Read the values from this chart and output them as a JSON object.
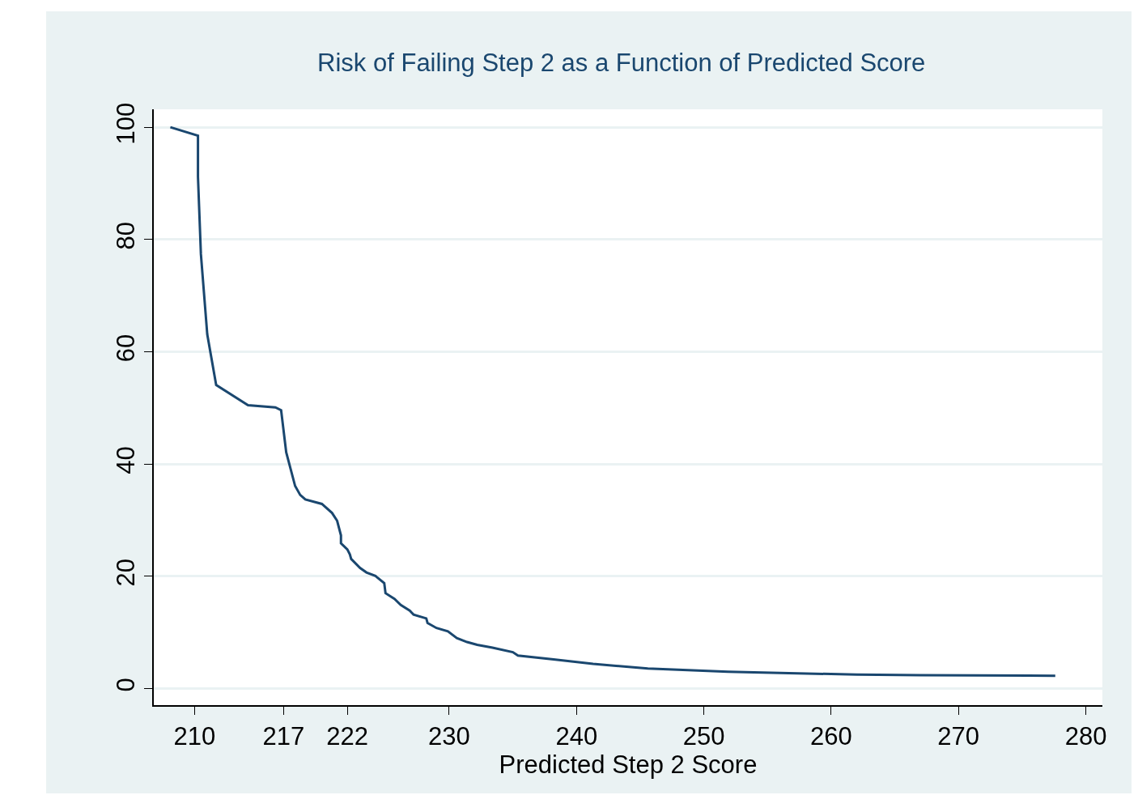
{
  "chart_data": {
    "type": "line",
    "title": "Risk of Failing Step 2 as a Function of Predicted Score",
    "xlabel": "Predicted Step 2 Score",
    "x": [
      208.1,
      210.27,
      210.27,
      210.5,
      211.0,
      211.7,
      214.2,
      216.35,
      216.8,
      217.2,
      217.9,
      218.3,
      218.7,
      220.0,
      220.8,
      221.2,
      221.5,
      221.5,
      222.0,
      222.2,
      222.3,
      223.0,
      223.5,
      224.2,
      224.3,
      224.9,
      225.0,
      225.7,
      226.2,
      226.9,
      227.2,
      228.2,
      228.3,
      229.0,
      229.9,
      230.6,
      231.4,
      232.2,
      233.4,
      235.0,
      235.4,
      238.2,
      241.3,
      245.6,
      251.9,
      256,
      262,
      267,
      277.6
    ],
    "series": [
      {
        "color": "#1a476f",
        "values": [
          100,
          98.5,
          91.2,
          77.4,
          63.1,
          54.1,
          50.5,
          50.1,
          49.6,
          42.1,
          36.1,
          34.5,
          33.7,
          32.9,
          31.3,
          29.9,
          27.3,
          25.9,
          24.8,
          23.9,
          23.1,
          21.5,
          20.7,
          20.1,
          19.9,
          18.8,
          17.0,
          16.0,
          14.9,
          13.9,
          13.2,
          12.5,
          11.7,
          10.8,
          10.2,
          9.0,
          8.3,
          7.8,
          7.3,
          6.5,
          5.9,
          5.2,
          4.4,
          3.6,
          3.0,
          2.8,
          2.5,
          2.4,
          2.3
        ]
      }
    ],
    "xlim": [
      206.8,
      281.3
    ],
    "xticks": [
      210,
      217,
      222,
      230,
      240,
      250,
      260,
      270,
      280
    ],
    "ylim": [
      -2.94,
      103.2
    ],
    "yticks": [
      0,
      20,
      40,
      60,
      80,
      100
    ],
    "grid": "y",
    "marker": "none",
    "line_style": "solid"
  }
}
